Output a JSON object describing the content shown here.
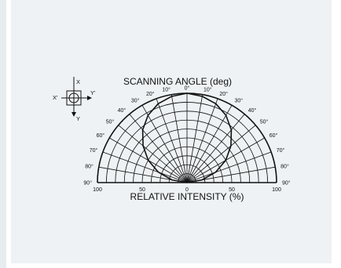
{
  "chart_data": {
    "type": "polar",
    "title": "SCANNING ANGLE (deg)",
    "xlabel": "RELATIVE INTENSITY  (%)",
    "angle_labels": [
      "90°",
      "80°",
      "70°",
      "60°",
      "50°",
      "40°",
      "30°",
      "20°",
      "10°",
      "0°",
      "10°",
      "20°",
      "30°",
      "40°",
      "50°",
      "60°",
      "70°",
      "80°",
      "90°"
    ],
    "intensity_ticks": [
      "100",
      "50",
      "0",
      "50",
      "100"
    ],
    "series": [
      {
        "angles": [
          -90,
          -80,
          -70,
          -60,
          -50,
          -40,
          -30,
          -20,
          -10,
          0,
          10,
          20,
          30,
          40,
          50,
          60,
          70,
          80,
          90
        ],
        "values": [
          0,
          17,
          34,
          50,
          64,
          77,
          87,
          94,
          98,
          100,
          98,
          94,
          87,
          77,
          64,
          50,
          34,
          17,
          0
        ]
      }
    ],
    "ylim": [
      0,
      100
    ]
  },
  "orientation": {
    "x_label": "X",
    "x_prime_label": "X'",
    "y_label": "Y",
    "y_prime_label": "Y'"
  },
  "colors": {
    "panel": "#eef2f5",
    "line": "#111111"
  }
}
